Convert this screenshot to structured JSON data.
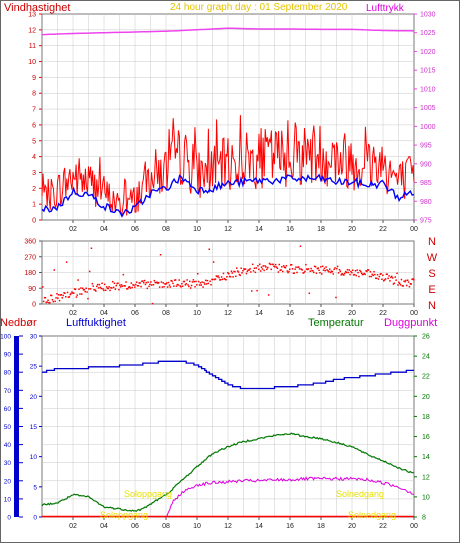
{
  "colors": {
    "wind": "#ff0000",
    "wind_avg": "#0000ff",
    "pressure": "#ee44ee",
    "direction": "#ff0000",
    "rain": "#ff0000",
    "humidity": "#0000cc",
    "temperature": "#007700",
    "dewpoint": "#dd00dd",
    "sun": "#ffff00",
    "frame": "#7a7a7a",
    "grid": "#c8c8c8"
  },
  "chart_data": [
    {
      "type": "line",
      "title": "24 hour graph day : 01 September 2020",
      "left_label": "Vindhastighet",
      "right_label": "Lufttrykk",
      "x_ticks": [
        "02",
        "04",
        "06",
        "08",
        "10",
        "12",
        "14",
        "16",
        "18",
        "20",
        "22",
        "00"
      ],
      "y_left_ticks": [
        "0",
        "1",
        "2",
        "3",
        "4",
        "5",
        "6",
        "7",
        "8",
        "9",
        "10",
        "11",
        "12",
        "13"
      ],
      "y_right_ticks": [
        "975",
        "980",
        "985",
        "990",
        "995",
        "1000",
        "1005",
        "1010",
        "1015",
        "1020",
        "1025",
        "1030"
      ],
      "ylim_left": [
        0,
        13
      ],
      "ylim_right": [
        975,
        1030
      ],
      "series": [
        {
          "name": "Vindhastighet",
          "axis": "left",
          "style": "gusts",
          "x": [
            0,
            1,
            2,
            3,
            4,
            5,
            6,
            7,
            8,
            9,
            10,
            11,
            12,
            13,
            14,
            15,
            16,
            17,
            18,
            19,
            20,
            21,
            22,
            23,
            24
          ],
          "values": [
            1.0,
            1.5,
            2.3,
            2.0,
            1.4,
            0.6,
            1.0,
            2.4,
            2.6,
            3.5,
            2.4,
            2.6,
            3.0,
            3.2,
            3.3,
            3.4,
            3.5,
            3.6,
            3.6,
            3.3,
            3.2,
            3.0,
            3.1,
            2.0,
            2.3
          ]
        },
        {
          "name": "Middelvind",
          "axis": "left",
          "x": [
            0,
            1,
            2,
            3,
            4,
            5,
            6,
            7,
            8,
            9,
            10,
            11,
            12,
            13,
            14,
            15,
            16,
            17,
            18,
            19,
            20,
            21,
            22,
            23,
            24
          ],
          "values": [
            0.6,
            0.8,
            1.8,
            1.6,
            0.9,
            0.4,
            0.7,
            1.7,
            2.0,
            2.7,
            1.9,
            2.0,
            2.3,
            2.4,
            2.5,
            2.5,
            2.6,
            2.6,
            2.6,
            2.4,
            2.4,
            2.2,
            2.3,
            1.4,
            1.8
          ]
        },
        {
          "name": "Lufttrykk",
          "axis": "right",
          "x": [
            0,
            2,
            4,
            6,
            8,
            10,
            12,
            14,
            16,
            18,
            20,
            22,
            24
          ],
          "values": [
            1024.5,
            1024.8,
            1025.0,
            1025.2,
            1025.4,
            1025.8,
            1026.2,
            1026.0,
            1026.0,
            1025.9,
            1025.9,
            1025.6,
            1025.5
          ]
        }
      ]
    },
    {
      "type": "scatter",
      "ylabel_right": [
        "N",
        "W",
        "S",
        "E",
        "N"
      ],
      "y_ticks": [
        "0",
        "90",
        "180",
        "270",
        "360"
      ],
      "ylim": [
        0,
        360
      ],
      "x_ticks": [
        "02",
        "04",
        "06",
        "08",
        "10",
        "12",
        "14",
        "16",
        "18",
        "20",
        "22",
        "00"
      ],
      "series": [
        {
          "name": "Vindretning",
          "x": [
            0,
            1,
            2,
            3,
            4,
            5,
            6,
            7,
            8,
            9,
            10,
            11,
            12,
            13,
            14,
            15,
            16,
            17,
            18,
            19,
            20,
            21,
            22,
            23,
            24
          ],
          "values": [
            25,
            35,
            55,
            95,
            100,
            105,
            108,
            110,
            110,
            115,
            115,
            130,
            165,
            195,
            210,
            205,
            200,
            200,
            195,
            190,
            180,
            170,
            150,
            130,
            120
          ]
        }
      ]
    },
    {
      "type": "line",
      "labels": {
        "rain": "Nedbør",
        "humidity": "Luftfuktighet",
        "temperature": "Temperatur",
        "dewpoint": "Duggpunkt"
      },
      "sun_labels": {
        "sunrise_a": "Soloppgang",
        "sunrise_b": "Soloppgang",
        "sunset_a": "Solnedgang",
        "sunset_b": "Solnedgang"
      },
      "x_ticks": [
        "02",
        "04",
        "06",
        "08",
        "10",
        "12",
        "14",
        "16",
        "18",
        "20",
        "22",
        "00"
      ],
      "y_rain_ticks": [
        "0",
        "10",
        "20",
        "30",
        "40",
        "50",
        "60",
        "70",
        "80",
        "90",
        "100"
      ],
      "y_rain_mm_ticks": [
        "0",
        "5",
        "10",
        "15",
        "20",
        "25",
        "30"
      ],
      "y_temp_ticks": [
        "8",
        "10",
        "12",
        "14",
        "16",
        "18",
        "20",
        "22",
        "24",
        "26"
      ],
      "ylim_humidity": [
        0,
        100
      ],
      "ylim_temp": [
        8,
        26
      ],
      "series": [
        {
          "name": "Luftfuktighet",
          "axis": "humidity",
          "x": [
            0,
            1,
            2,
            4,
            6,
            7,
            8,
            9,
            10,
            11,
            12,
            13,
            14,
            16,
            18,
            19,
            20,
            22,
            24
          ],
          "values": [
            80,
            82,
            82,
            83,
            84,
            85,
            86,
            86,
            84,
            78,
            73,
            71,
            71,
            72,
            74,
            76,
            77,
            79,
            81
          ]
        },
        {
          "name": "Temperatur",
          "axis": "temp",
          "x": [
            0,
            1,
            2,
            3,
            4,
            5,
            6,
            6.5,
            7,
            8,
            9,
            10,
            11,
            12,
            13,
            14,
            15,
            16,
            17,
            18,
            19,
            20,
            21,
            22,
            23,
            24
          ],
          "values": [
            9.2,
            9.4,
            10.2,
            10.0,
            9.0,
            8.8,
            8.6,
            8.8,
            9.3,
            10.2,
            11.6,
            13.0,
            14.3,
            15.0,
            15.5,
            15.8,
            16.1,
            16.3,
            16.0,
            15.8,
            15.4,
            15.0,
            14.2,
            13.6,
            12.9,
            12.3
          ]
        },
        {
          "name": "Duggpunkt",
          "axis": "temp",
          "x": [
            8,
            8.5,
            9,
            10,
            11,
            12,
            13,
            14,
            15,
            16,
            17,
            18,
            19,
            20,
            21,
            22,
            23,
            24
          ],
          "values": [
            8.0,
            9.6,
            10.4,
            11.2,
            11.4,
            11.5,
            11.6,
            11.6,
            11.7,
            11.7,
            11.8,
            11.8,
            11.8,
            11.8,
            11.7,
            11.4,
            11.0,
            10.3
          ]
        },
        {
          "name": "Nedbør",
          "axis": "humidity",
          "x": [
            0,
            24
          ],
          "values": [
            0,
            0
          ]
        }
      ]
    }
  ]
}
